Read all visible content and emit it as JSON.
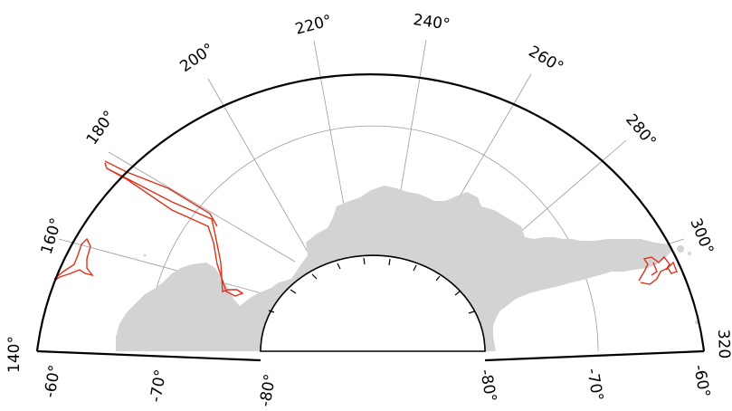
{
  "map": {
    "projection": "polar stereographic (south), sector 140°–320° longitude, -60° to -80° latitude",
    "longitude_labels": [
      "140°",
      "160°",
      "180°",
      "200°",
      "220°",
      "240°",
      "260°",
      "280°",
      "300°",
      "320"
    ],
    "latitude_labels_left": [
      "-60°",
      "-70°",
      "-80°"
    ],
    "latitude_labels_right": [
      "-80°",
      "-70°",
      "-60°"
    ],
    "colors": {
      "land": "#d3d3d3",
      "track": "#e0311a",
      "graticule": "#9a9a9a",
      "frame": "#000000"
    }
  }
}
